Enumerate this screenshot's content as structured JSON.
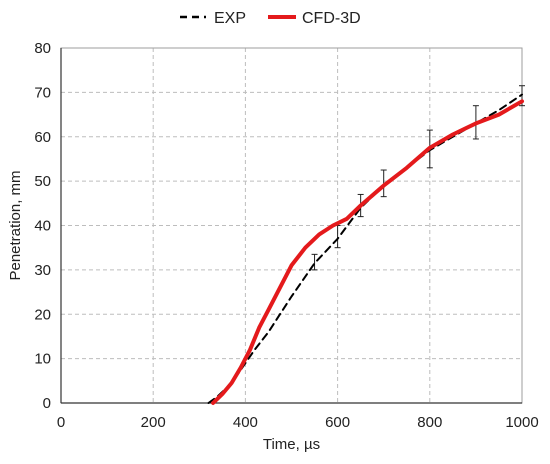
{
  "chart_data": {
    "type": "line",
    "xlabel": "Time, µs",
    "ylabel": "Penetration, mm",
    "xlim": [
      0,
      1000
    ],
    "ylim": [
      0,
      80
    ],
    "xticks": [
      0,
      200,
      400,
      600,
      800,
      1000
    ],
    "yticks": [
      0,
      10,
      20,
      30,
      40,
      50,
      60,
      70,
      80
    ],
    "grid": true,
    "legend_position": "top",
    "series": [
      {
        "name": "EXP",
        "style": "dashed",
        "color": "#000000",
        "x": [
          320,
          340,
          360,
          380,
          400,
          420,
          450,
          500,
          550,
          600,
          650,
          700,
          750,
          800,
          850,
          900,
          950,
          1000
        ],
        "y": [
          0,
          1.5,
          3.5,
          6,
          9,
          12,
          16,
          24,
          31.5,
          37,
          44,
          49,
          53,
          57,
          60,
          63,
          66,
          69.5
        ],
        "error_bars": [
          {
            "x": 550,
            "y": 31.5,
            "low": 30,
            "high": 33.5
          },
          {
            "x": 600,
            "y": 37,
            "low": 35,
            "high": 40
          },
          {
            "x": 650,
            "y": 44.5,
            "low": 42,
            "high": 47
          },
          {
            "x": 700,
            "y": 49.5,
            "low": 46.5,
            "high": 52.5
          },
          {
            "x": 800,
            "y": 57,
            "low": 53,
            "high": 61.5
          },
          {
            "x": 900,
            "y": 63.5,
            "low": 59.5,
            "high": 67
          },
          {
            "x": 1000,
            "y": 69,
            "low": 67,
            "high": 71.5
          }
        ]
      },
      {
        "name": "CFD-3D",
        "style": "solid",
        "color": "#e41a1c",
        "x": [
          330,
          350,
          370,
          390,
          410,
          430,
          450,
          470,
          500,
          530,
          560,
          590,
          600,
          620,
          650,
          700,
          750,
          800,
          850,
          900,
          950,
          1000
        ],
        "y": [
          0,
          2,
          4.5,
          8,
          12,
          17,
          21,
          25,
          31,
          35,
          38,
          40,
          40.5,
          41.5,
          44.5,
          49,
          53,
          57.5,
          60.5,
          63,
          65,
          68
        ]
      }
    ]
  }
}
